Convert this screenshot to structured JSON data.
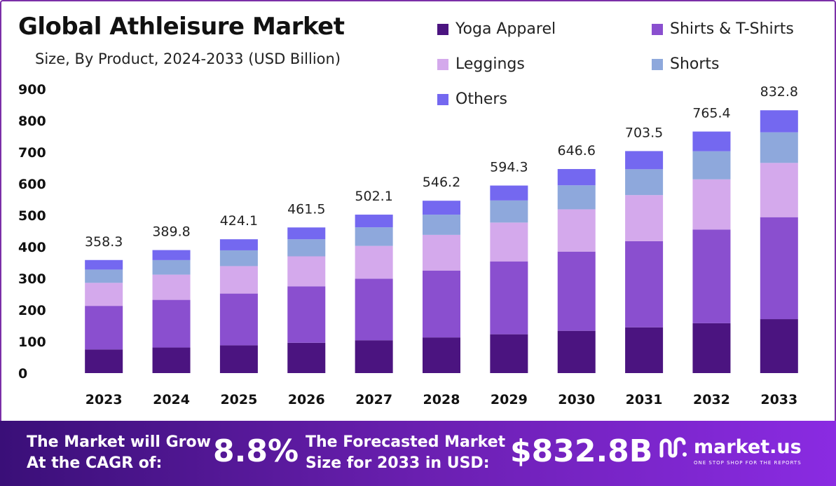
{
  "header": {
    "title": "Global Athleisure Market",
    "subtitle": "Size, By Product, 2024-2033 (USD Billion)"
  },
  "legend": [
    {
      "label": "Yoga Apparel",
      "color": "#4b1480"
    },
    {
      "label": "Shirts & T-Shirts",
      "color": "#8a4fcf"
    },
    {
      "label": "Leggings",
      "color": "#d4a9ec"
    },
    {
      "label": "Shorts",
      "color": "#8ea8dc"
    },
    {
      "label": "Others",
      "color": "#7468f0"
    }
  ],
  "chart_data": {
    "type": "bar",
    "stacked": true,
    "title": "Global Athleisure Market",
    "subtitle": "Size, By Product, 2024-2033 (USD Billion)",
    "categories": [
      "2023",
      "2024",
      "2025",
      "2026",
      "2027",
      "2028",
      "2029",
      "2030",
      "2031",
      "2032",
      "2033"
    ],
    "totals": [
      358.3,
      389.8,
      424.1,
      461.5,
      502.1,
      546.2,
      594.3,
      646.6,
      703.5,
      765.4,
      832.8
    ],
    "total_labels": [
      "358.3",
      "389.8",
      "424.1",
      "461.5",
      "502.1",
      "546.2",
      "594.3",
      "646.6",
      "703.5",
      "765.4",
      "832.8"
    ],
    "series": [
      {
        "name": "Yoga Apparel",
        "color": "#4b1480",
        "values": [
          75,
          81,
          88,
          96,
          104,
          113,
          123,
          134,
          145,
          158,
          171
        ]
      },
      {
        "name": "Shirts & T-Shirts",
        "color": "#8a4fcf",
        "values": [
          138,
          151,
          164,
          179,
          195,
          212,
          231,
          251,
          273,
          297,
          323
        ]
      },
      {
        "name": "Leggings",
        "color": "#d4a9ec",
        "values": [
          73,
          80,
          87,
          95,
          104,
          113,
          123,
          134,
          146,
          159,
          172
        ]
      },
      {
        "name": "Shorts",
        "color": "#8ea8dc",
        "values": [
          42,
          46,
          50,
          54,
          59,
          64,
          70,
          76,
          82,
          89,
          97
        ]
      },
      {
        "name": "Others",
        "color": "#7468f0",
        "values": [
          30.3,
          31.8,
          35.1,
          37.5,
          40.1,
          44.2,
          47.3,
          51.6,
          57.5,
          62.4,
          69.8
        ]
      }
    ],
    "ylim": [
      0,
      900
    ],
    "yticks": [
      "0",
      "100",
      "200",
      "300",
      "400",
      "500",
      "600",
      "700",
      "800",
      "900"
    ],
    "grid": false,
    "legend_position": "top-right"
  },
  "footer": {
    "cagr_text_line1": "The Market will Grow",
    "cagr_text_line2": "At the CAGR of:",
    "cagr_value": "8.8%",
    "forecast_text_line1": "The Forecasted Market",
    "forecast_text_line2": "Size for 2033 in USD:",
    "forecast_value": "$832.8B",
    "brand_name": "market.us",
    "brand_tagline": "ONE STOP SHOP FOR THE REPORTS"
  }
}
